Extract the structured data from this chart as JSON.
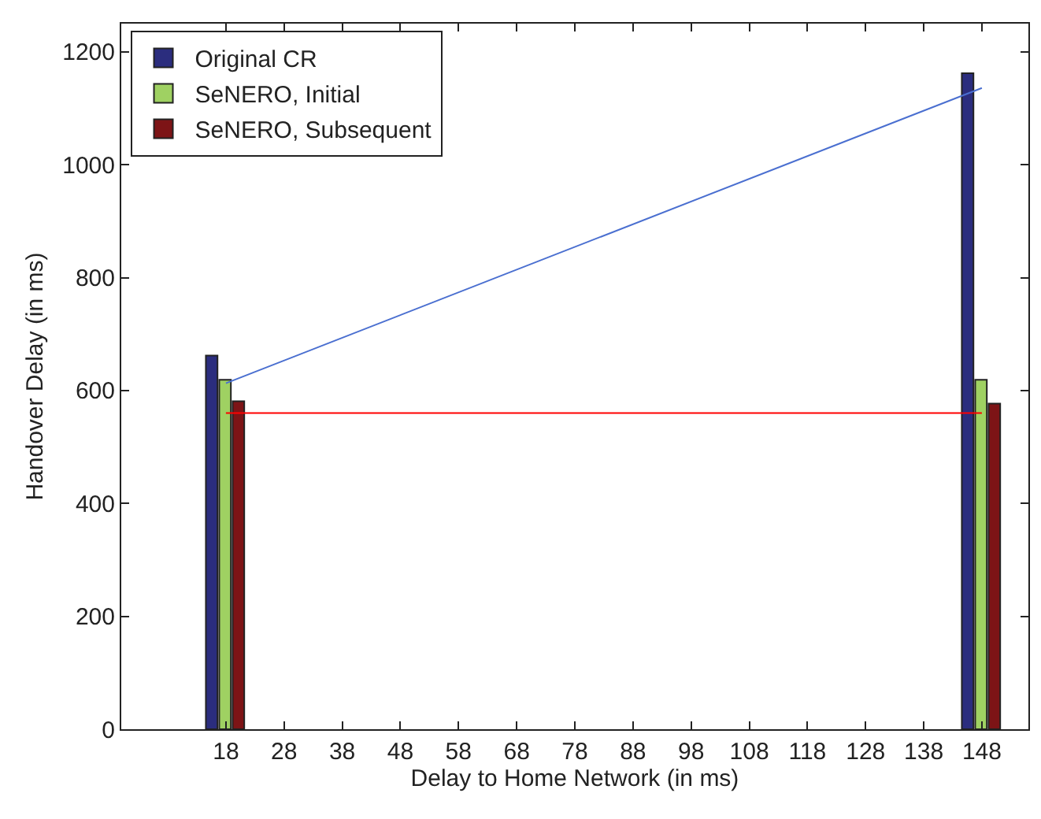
{
  "chart_data": {
    "type": "bar",
    "xlabel": "Delay to Home Network (in ms)",
    "ylabel": "Handover Delay (in ms)",
    "x": [
      18,
      148
    ],
    "series": [
      {
        "name": "Original CR",
        "color": "#2b2d7e",
        "values": [
          662,
          1162
        ]
      },
      {
        "name": "SeNERO, Initial",
        "color": "#9fd162",
        "values": [
          619,
          619
        ]
      },
      {
        "name": "SeNERO, Subsequent",
        "color": "#7d1416",
        "values": [
          581,
          577
        ]
      },
      {
        "type": "line",
        "color": "#4a6fd0",
        "values": [
          613,
          1136
        ]
      },
      {
        "type": "line",
        "color": "#ff0000",
        "values": [
          560,
          560
        ]
      }
    ],
    "xlim": [
      0,
      156
    ],
    "xticks": [
      18,
      28,
      38,
      48,
      58,
      68,
      78,
      88,
      98,
      108,
      118,
      128,
      138,
      148
    ],
    "ylim": [
      0,
      1250
    ],
    "yticks": [
      0,
      200,
      400,
      600,
      800,
      1000,
      1200
    ],
    "legend": "top left"
  }
}
